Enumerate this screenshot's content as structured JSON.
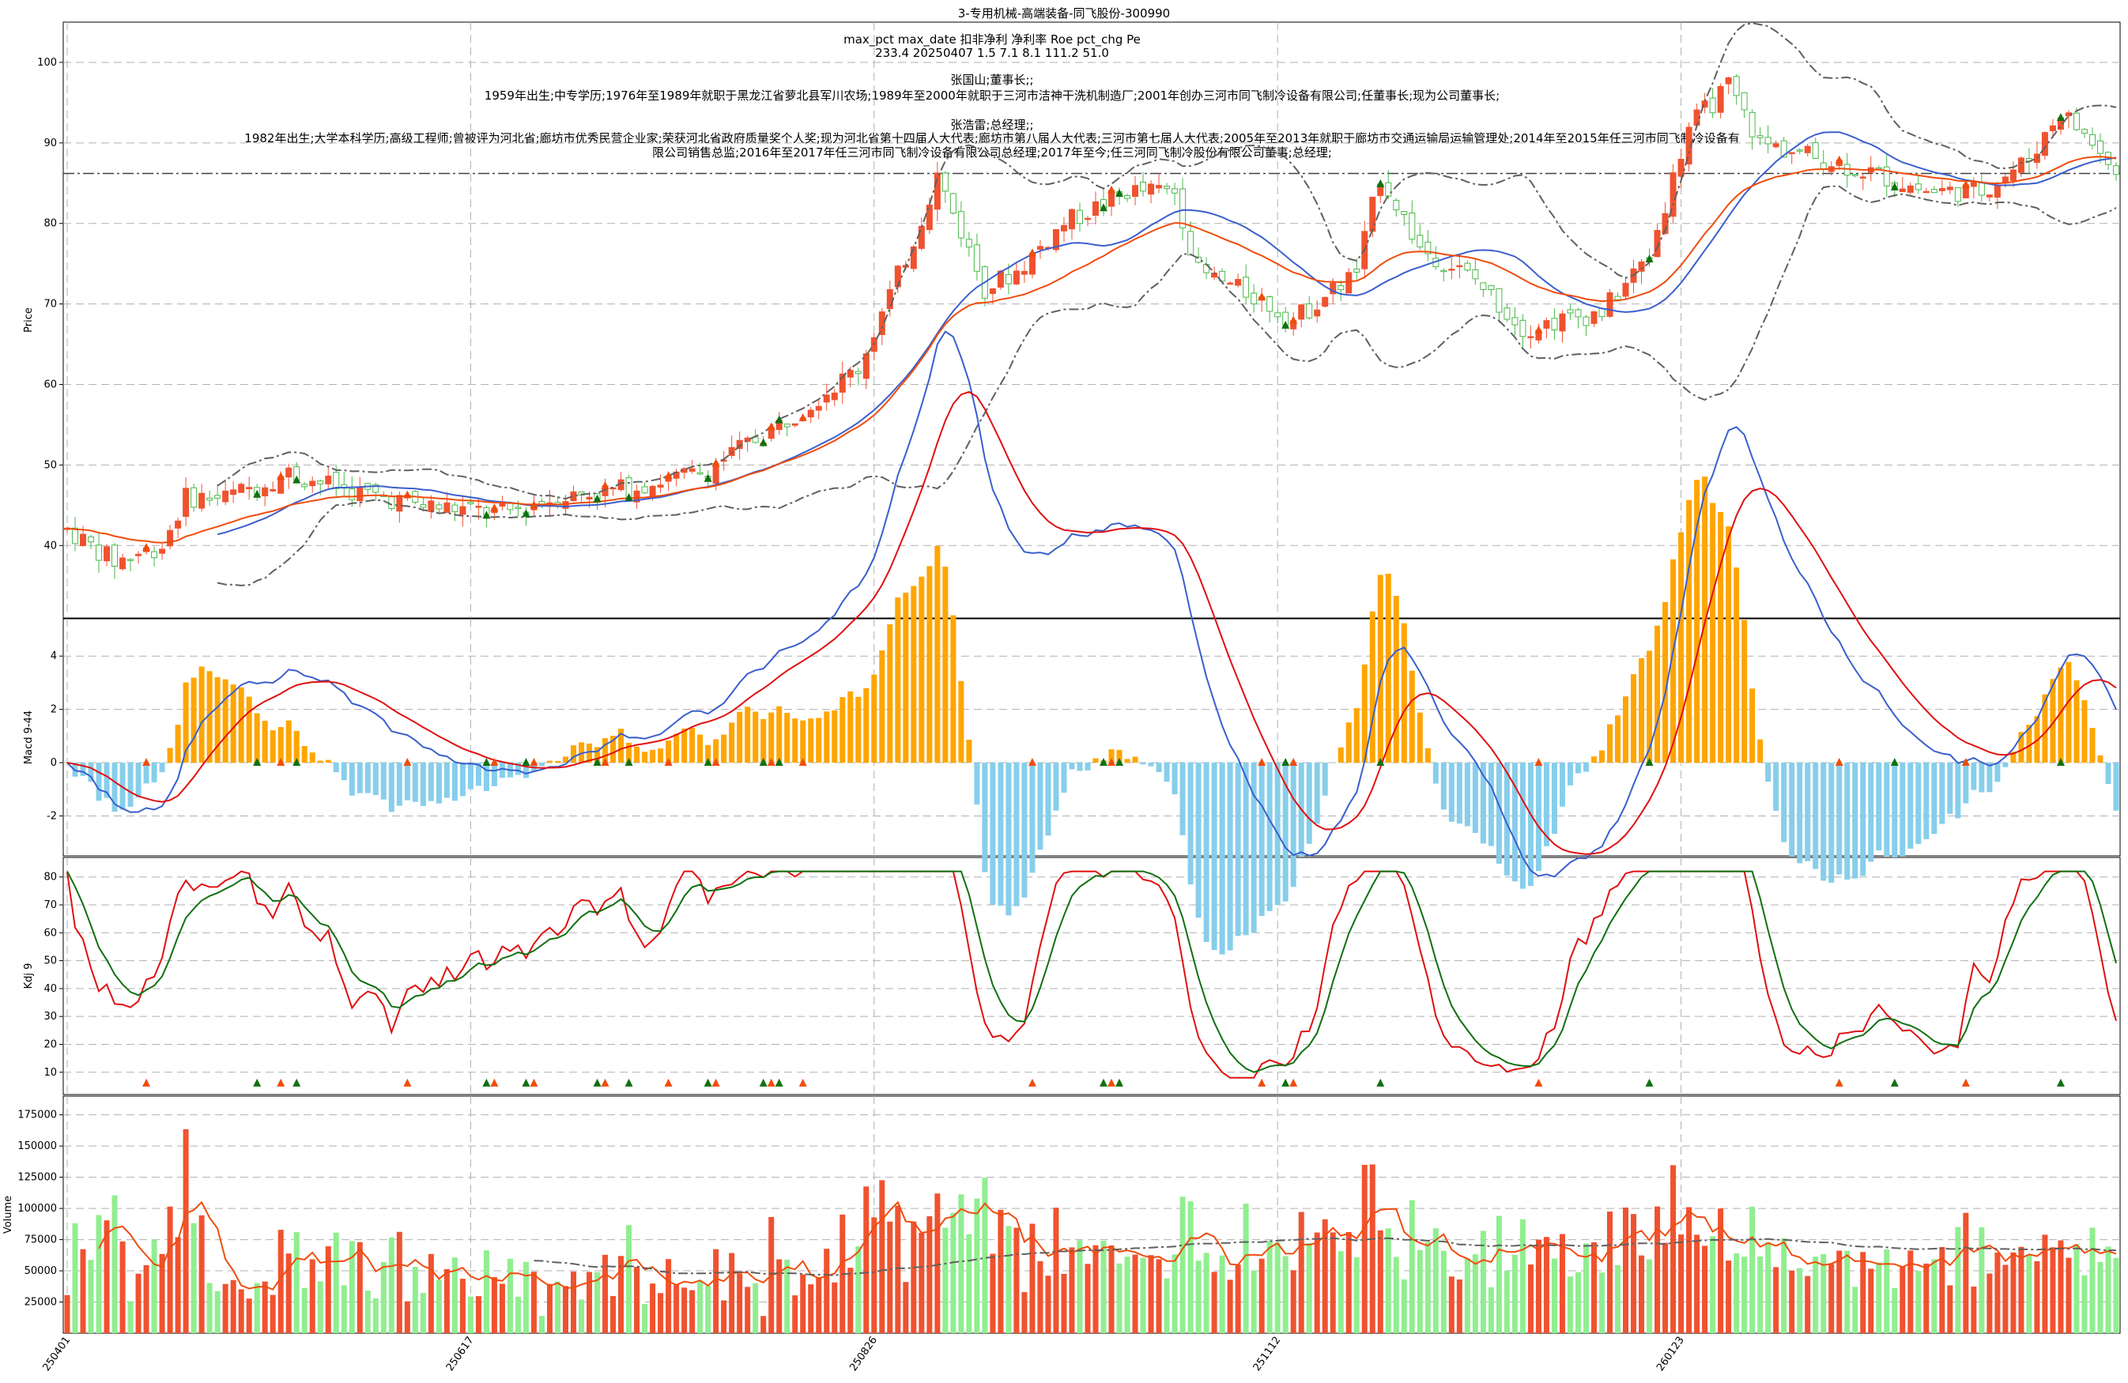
{
  "title": "3-专用机械-高端装备-同飞股份-300990",
  "info_lines": [
    "max_pct  max_date  扣非净利  净利率  Roe  pct_chg  Pe",
    "233.4    20250407    1.5     7.1    8.1    111.2    51.0",
    "",
    "张国山;董事长;;",
    "1959年出生;中专学历;1976年至1989年就职于黑龙江省萝北县军川农场;1989年至2000年就职于三河市洁神干洗机制造厂;2001年创办三河市同飞制冷设备有限公司;任董事长;现为公司董事长;",
    "",
    "张浩雷;总经理;;",
    "1982年出生;大学本科学历;高级工程师;曾被评为河北省;廊坊市优秀民营企业家;荣获河北省政府质量奖个人奖;现为河北省第十四届人大代表;廊坊市第八届人大代表;三河市第七届人大代表;2005年至2013年就职于廊坊市交通运输局运输管理处;2014年至2015年任三河市同飞制冷设备有",
    "限公司销售总监;2016年至2017年任三河市同飞制冷设备有限公司总经理;2017年至今;任三河同飞制冷股份有限公司董事;总经理;"
  ],
  "colors": {
    "up": "#f0522f",
    "down": "#49b849",
    "vol_up": "#f0522f",
    "vol_down": "#90ee90",
    "ma_fast": "#3a5fcd",
    "ma_slow": "#f04c0c",
    "boll": "#606060",
    "macd_pos": "#ffa500",
    "macd_neg": "#87ceeb",
    "dif": "#3a5fcd",
    "dea": "#e01010",
    "k": "#e01010",
    "d": "#107010",
    "marker_buy": "#f04c0c",
    "marker_sell": "#107010",
    "grid": "#b0b0b0"
  },
  "chart_data": [
    {
      "type": "candlestick",
      "ylabel": "Price",
      "ylim": [
        31,
        105
      ],
      "yticks": [
        40,
        50,
        60,
        70,
        80,
        90,
        100
      ],
      "hline": 86.2,
      "x_tick_labels": [
        "250401",
        "250617",
        "250826",
        "251112",
        "260123"
      ],
      "x_tick_index": [
        0,
        51,
        102,
        153,
        204
      ],
      "grid": true
    },
    {
      "type": "bar+line",
      "ylabel": "Macd 9-44",
      "ylim": [
        -3.5,
        5.4
      ],
      "yticks": [
        -2,
        0,
        2,
        4
      ],
      "grid": true
    },
    {
      "type": "line",
      "ylabel": "Kdj 9",
      "ylim": [
        2,
        87
      ],
      "yticks": [
        10,
        20,
        30,
        40,
        50,
        60,
        70,
        80
      ],
      "grid": true
    },
    {
      "type": "bar",
      "ylabel": "Volume",
      "ylim": [
        0,
        190000
      ],
      "yticks": [
        25000,
        50000,
        75000,
        100000,
        125000,
        150000,
        175000
      ],
      "grid": true
    }
  ]
}
